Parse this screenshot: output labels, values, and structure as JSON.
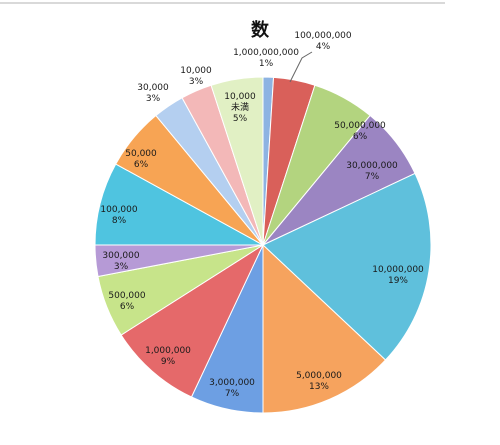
{
  "chart_data": {
    "type": "pie",
    "title": "数",
    "categories": [
      "1,000,000,000",
      "100,000,000",
      "50,000,000",
      "30,000,000",
      "10,000,000",
      "5,000,000",
      "3,000,000",
      "1,000,000",
      "500,000",
      "300,000",
      "100,000",
      "50,000",
      "30,000",
      "10,000",
      "10,000 未満"
    ],
    "values": [
      1,
      4,
      6,
      7,
      19,
      13,
      7,
      9,
      6,
      3,
      8,
      6,
      3,
      3,
      5
    ],
    "percent_labels": [
      "1%",
      "4%",
      "6%",
      "7%",
      "19%",
      "13%",
      "7%",
      "9%",
      "6%",
      "3%",
      "8%",
      "6%",
      "3%",
      "3%",
      "5%"
    ],
    "colors": [
      "#8db3e2",
      "#d9605a",
      "#b3d47f",
      "#9b85c2",
      "#5fc0dc",
      "#f6a35e",
      "#6d9fe3",
      "#e5696a",
      "#c7e48a",
      "#b69ad6",
      "#4fc4e0",
      "#f7a454",
      "#b4cff0",
      "#f3b8b8",
      "#e1f0c4"
    ],
    "legend": "none",
    "start_angle_deg": 0,
    "direction": "clockwise"
  }
}
